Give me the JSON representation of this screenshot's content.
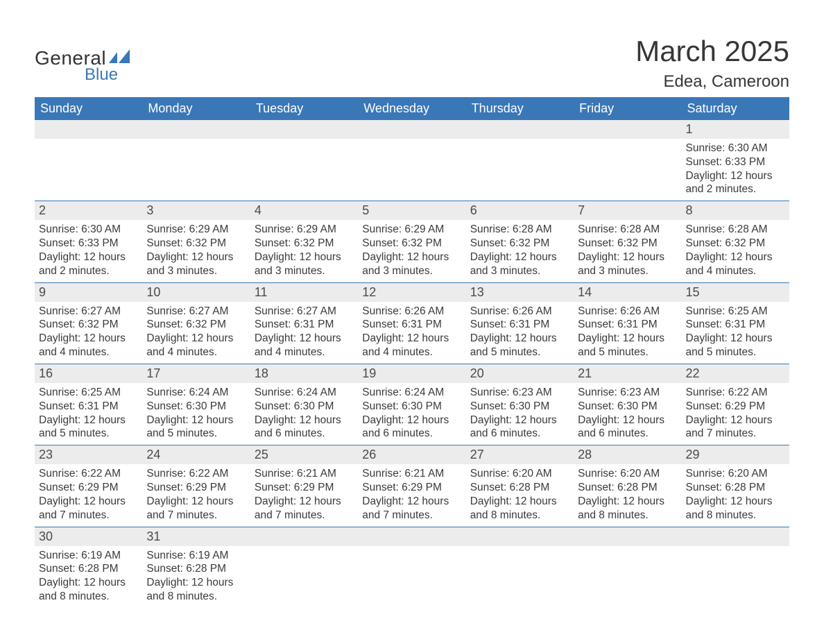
{
  "brand": {
    "line1": "General",
    "line2": "Blue"
  },
  "title": "March 2025",
  "location": "Edea, Cameroon",
  "colors": {
    "header_bg": "#3a77b7",
    "header_text": "#ffffff",
    "daynum_bg": "#ececec",
    "row_border": "#3a77b7",
    "body_text": "#3a3a3a",
    "page_bg": "#ffffff",
    "logo_accent": "#3a77b7",
    "logo_text": "#333333"
  },
  "typography": {
    "title_fontsize": 42,
    "location_fontsize": 24,
    "header_fontsize": 18,
    "daynum_fontsize": 18,
    "body_fontsize": 15.5,
    "font_family": "Arial"
  },
  "layout": {
    "columns": 7,
    "rows": 6,
    "first_weekday": "Sunday",
    "month_start_col": 6,
    "days_in_month": 31
  },
  "weekdays": [
    "Sunday",
    "Monday",
    "Tuesday",
    "Wednesday",
    "Thursday",
    "Friday",
    "Saturday"
  ],
  "days": [
    {
      "n": 1,
      "sunrise": "6:30 AM",
      "sunset": "6:33 PM",
      "daylight": "12 hours and 2 minutes."
    },
    {
      "n": 2,
      "sunrise": "6:30 AM",
      "sunset": "6:33 PM",
      "daylight": "12 hours and 2 minutes."
    },
    {
      "n": 3,
      "sunrise": "6:29 AM",
      "sunset": "6:32 PM",
      "daylight": "12 hours and 3 minutes."
    },
    {
      "n": 4,
      "sunrise": "6:29 AM",
      "sunset": "6:32 PM",
      "daylight": "12 hours and 3 minutes."
    },
    {
      "n": 5,
      "sunrise": "6:29 AM",
      "sunset": "6:32 PM",
      "daylight": "12 hours and 3 minutes."
    },
    {
      "n": 6,
      "sunrise": "6:28 AM",
      "sunset": "6:32 PM",
      "daylight": "12 hours and 3 minutes."
    },
    {
      "n": 7,
      "sunrise": "6:28 AM",
      "sunset": "6:32 PM",
      "daylight": "12 hours and 3 minutes."
    },
    {
      "n": 8,
      "sunrise": "6:28 AM",
      "sunset": "6:32 PM",
      "daylight": "12 hours and 4 minutes."
    },
    {
      "n": 9,
      "sunrise": "6:27 AM",
      "sunset": "6:32 PM",
      "daylight": "12 hours and 4 minutes."
    },
    {
      "n": 10,
      "sunrise": "6:27 AM",
      "sunset": "6:32 PM",
      "daylight": "12 hours and 4 minutes."
    },
    {
      "n": 11,
      "sunrise": "6:27 AM",
      "sunset": "6:31 PM",
      "daylight": "12 hours and 4 minutes."
    },
    {
      "n": 12,
      "sunrise": "6:26 AM",
      "sunset": "6:31 PM",
      "daylight": "12 hours and 4 minutes."
    },
    {
      "n": 13,
      "sunrise": "6:26 AM",
      "sunset": "6:31 PM",
      "daylight": "12 hours and 5 minutes."
    },
    {
      "n": 14,
      "sunrise": "6:26 AM",
      "sunset": "6:31 PM",
      "daylight": "12 hours and 5 minutes."
    },
    {
      "n": 15,
      "sunrise": "6:25 AM",
      "sunset": "6:31 PM",
      "daylight": "12 hours and 5 minutes."
    },
    {
      "n": 16,
      "sunrise": "6:25 AM",
      "sunset": "6:31 PM",
      "daylight": "12 hours and 5 minutes."
    },
    {
      "n": 17,
      "sunrise": "6:24 AM",
      "sunset": "6:30 PM",
      "daylight": "12 hours and 5 minutes."
    },
    {
      "n": 18,
      "sunrise": "6:24 AM",
      "sunset": "6:30 PM",
      "daylight": "12 hours and 6 minutes."
    },
    {
      "n": 19,
      "sunrise": "6:24 AM",
      "sunset": "6:30 PM",
      "daylight": "12 hours and 6 minutes."
    },
    {
      "n": 20,
      "sunrise": "6:23 AM",
      "sunset": "6:30 PM",
      "daylight": "12 hours and 6 minutes."
    },
    {
      "n": 21,
      "sunrise": "6:23 AM",
      "sunset": "6:30 PM",
      "daylight": "12 hours and 6 minutes."
    },
    {
      "n": 22,
      "sunrise": "6:22 AM",
      "sunset": "6:29 PM",
      "daylight": "12 hours and 7 minutes."
    },
    {
      "n": 23,
      "sunrise": "6:22 AM",
      "sunset": "6:29 PM",
      "daylight": "12 hours and 7 minutes."
    },
    {
      "n": 24,
      "sunrise": "6:22 AM",
      "sunset": "6:29 PM",
      "daylight": "12 hours and 7 minutes."
    },
    {
      "n": 25,
      "sunrise": "6:21 AM",
      "sunset": "6:29 PM",
      "daylight": "12 hours and 7 minutes."
    },
    {
      "n": 26,
      "sunrise": "6:21 AM",
      "sunset": "6:29 PM",
      "daylight": "12 hours and 7 minutes."
    },
    {
      "n": 27,
      "sunrise": "6:20 AM",
      "sunset": "6:28 PM",
      "daylight": "12 hours and 8 minutes."
    },
    {
      "n": 28,
      "sunrise": "6:20 AM",
      "sunset": "6:28 PM",
      "daylight": "12 hours and 8 minutes."
    },
    {
      "n": 29,
      "sunrise": "6:20 AM",
      "sunset": "6:28 PM",
      "daylight": "12 hours and 8 minutes."
    },
    {
      "n": 30,
      "sunrise": "6:19 AM",
      "sunset": "6:28 PM",
      "daylight": "12 hours and 8 minutes."
    },
    {
      "n": 31,
      "sunrise": "6:19 AM",
      "sunset": "6:28 PM",
      "daylight": "12 hours and 8 minutes."
    }
  ],
  "labels": {
    "sunrise_prefix": "Sunrise: ",
    "sunset_prefix": "Sunset: ",
    "daylight_prefix": "Daylight: "
  }
}
